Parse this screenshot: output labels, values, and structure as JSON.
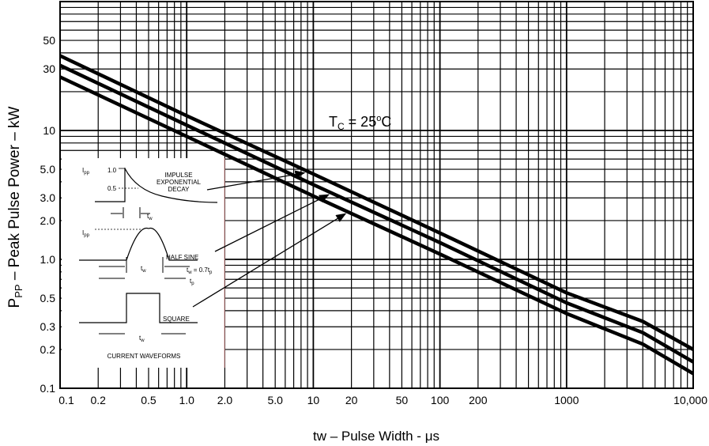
{
  "chart_data": {
    "type": "line",
    "title": "",
    "xlabel": "tw – Pulse Width - μs",
    "ylabel_main": "P",
    "ylabel_sub": "PP",
    "ylabel_rest": " – Peak Pulse Power – kW",
    "x_scale": "log",
    "y_scale": "log",
    "xlim": [
      0.1,
      10000
    ],
    "ylim": [
      0.1,
      100
    ],
    "grid": true,
    "x_ticks": [
      {
        "v": 0.1,
        "t": "0.1"
      },
      {
        "v": 0.2,
        "t": "0.2"
      },
      {
        "v": 0.5,
        "t": "0.5"
      },
      {
        "v": 1,
        "t": "1.0"
      },
      {
        "v": 2,
        "t": "2.0"
      },
      {
        "v": 5,
        "t": "5.0"
      },
      {
        "v": 10,
        "t": "10"
      },
      {
        "v": 20,
        "t": "20"
      },
      {
        "v": 50,
        "t": "50"
      },
      {
        "v": 100,
        "t": "100"
      },
      {
        "v": 200,
        "t": "200"
      },
      {
        "v": 1000,
        "t": "1000"
      },
      {
        "v": 10000,
        "t": "10,000"
      }
    ],
    "y_ticks": [
      {
        "v": 0.1,
        "t": "0.1"
      },
      {
        "v": 0.2,
        "t": "0.2"
      },
      {
        "v": 0.3,
        "t": "0.3"
      },
      {
        "v": 0.5,
        "t": "0.5"
      },
      {
        "v": 1,
        "t": "1.0"
      },
      {
        "v": 2,
        "t": "2.0"
      },
      {
        "v": 3,
        "t": "3.0"
      },
      {
        "v": 5,
        "t": "5.0"
      },
      {
        "v": 10,
        "t": "10"
      },
      {
        "v": 30,
        "t": "30"
      },
      {
        "v": 50,
        "t": "50"
      }
    ],
    "series": [
      {
        "x": [
          0.1,
          1,
          10,
          100,
          1000,
          4000,
          10000
        ],
        "y": [
          38,
          13,
          4.6,
          1.6,
          0.55,
          0.33,
          0.2
        ]
      },
      {
        "x": [
          0.1,
          1,
          10,
          100,
          1000,
          4000,
          10000
        ],
        "y": [
          32,
          11,
          3.8,
          1.35,
          0.46,
          0.27,
          0.16
        ]
      },
      {
        "x": [
          0.1,
          1,
          10,
          100,
          1000,
          4000,
          10000
        ],
        "y": [
          26,
          9,
          3.1,
          1.1,
          0.38,
          0.22,
          0.13
        ]
      }
    ],
    "annotation": {
      "main": "T",
      "sub": "C",
      "rest": " = 25",
      "sup": "o",
      "end": "C"
    },
    "inset": {
      "ipp": "I",
      "ipp_sub": "pp",
      "v10": "1.0",
      "v05": "0.5",
      "impulse1": "IMPULSE",
      "impulse2": "EXPONENTIAL",
      "impulse3": "DECAY",
      "tw": "t",
      "tw_sub": "w",
      "half_sine": "HALF SINE",
      "tw_eq": "t",
      "tw_eq_sub": "w",
      "tw_eq_rest": " = 0.7t",
      "tw_eq_sub2": "p",
      "tp": "t",
      "tp_sub": "p",
      "square": "SQUARE",
      "caption": "CURRENT WAVEFORMS"
    }
  }
}
